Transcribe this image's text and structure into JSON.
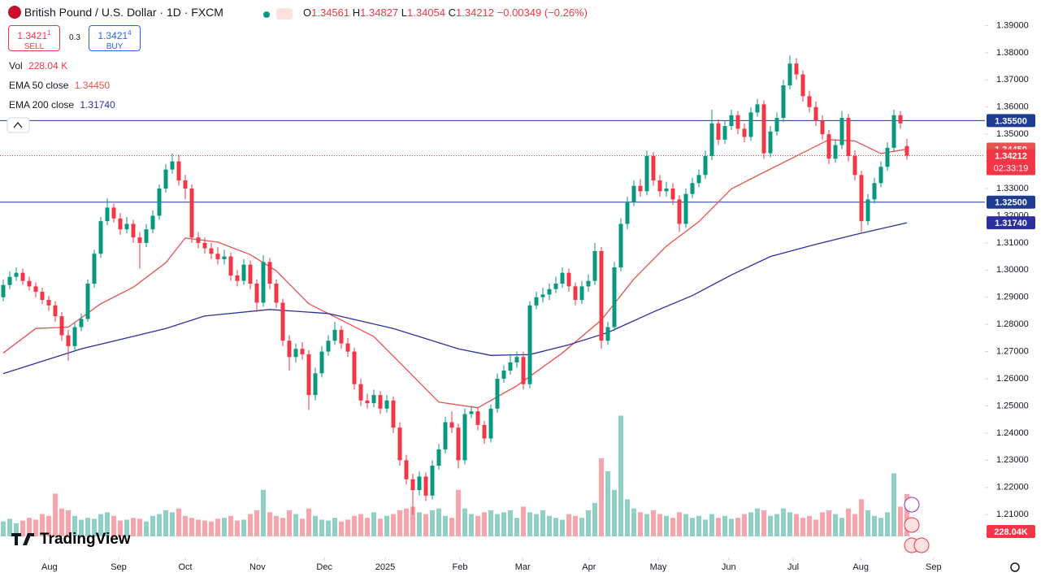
{
  "header": {
    "symbol": "British Pound / U.S. Dollar · 1D · FXCM",
    "ohlc_labels": [
      "O",
      "H",
      "L",
      "C"
    ],
    "change": "−0.00349 (−0.26%)",
    "sell": "1.3421",
    "sell_pip": "1",
    "sell_label": "SELL",
    "spread": "0.3",
    "buy": "1.3421",
    "buy_pip": "4",
    "buy_label": "BUY"
  },
  "legend": {
    "vol": "Vol",
    "vol_value": "228.04 K"
  },
  "chart_data": {
    "type": "candlestick",
    "up_color": "#089981",
    "down_color": "#f23645",
    "candles": [
      [
        1.29,
        1.2965,
        1.2885,
        1.2945
      ],
      [
        1.2945,
        1.2995,
        1.293,
        1.2975
      ],
      [
        1.2975,
        1.301,
        1.296,
        1.299
      ],
      [
        1.299,
        1.3005,
        1.2945,
        1.296
      ],
      [
        1.296,
        1.2975,
        1.2925,
        1.294
      ],
      [
        1.294,
        1.2955,
        1.29,
        1.292
      ],
      [
        1.292,
        1.2935,
        1.2875,
        1.289
      ],
      [
        1.289,
        1.2905,
        1.285,
        1.287
      ],
      [
        1.287,
        1.2885,
        1.281,
        1.283
      ],
      [
        1.283,
        1.2845,
        1.274,
        1.276
      ],
      [
        1.276,
        1.278,
        1.2665,
        1.272
      ],
      [
        1.272,
        1.2805,
        1.27,
        1.279
      ],
      [
        1.279,
        1.284,
        1.2775,
        1.282
      ],
      [
        1.282,
        1.2965,
        1.281,
        1.295
      ],
      [
        1.295,
        1.3075,
        1.2935,
        1.306
      ],
      [
        1.306,
        1.3195,
        1.3045,
        1.318
      ],
      [
        1.318,
        1.3265,
        1.3165,
        1.323
      ],
      [
        1.323,
        1.3245,
        1.3175,
        1.319
      ],
      [
        1.319,
        1.321,
        1.313,
        1.315
      ],
      [
        1.315,
        1.3195,
        1.3135,
        1.317
      ],
      [
        1.317,
        1.3185,
        1.31,
        1.312
      ],
      [
        1.312,
        1.314,
        1.3005,
        1.31
      ],
      [
        1.31,
        1.317,
        1.3085,
        1.315
      ],
      [
        1.315,
        1.322,
        1.3135,
        1.32
      ],
      [
        1.32,
        1.3315,
        1.3185,
        1.33
      ],
      [
        1.33,
        1.339,
        1.3285,
        1.337
      ],
      [
        1.337,
        1.343,
        1.3355,
        1.34
      ],
      [
        1.34,
        1.3425,
        1.331,
        1.333
      ],
      [
        1.333,
        1.335,
        1.326,
        1.33
      ],
      [
        1.33,
        1.3315,
        1.31,
        1.312
      ],
      [
        1.312,
        1.314,
        1.308,
        1.31
      ],
      [
        1.31,
        1.312,
        1.306,
        1.308
      ],
      [
        1.308,
        1.31,
        1.304,
        1.306
      ],
      [
        1.306,
        1.3085,
        1.302,
        1.304
      ],
      [
        1.304,
        1.3075,
        1.302,
        1.305
      ],
      [
        1.305,
        1.3065,
        1.296,
        1.298
      ],
      [
        1.298,
        1.3,
        1.294,
        1.296
      ],
      [
        1.296,
        1.304,
        1.2945,
        1.302
      ],
      [
        1.302,
        1.3035,
        1.293,
        1.295
      ],
      [
        1.295,
        1.2965,
        1.2845,
        1.288
      ],
      [
        1.288,
        1.3055,
        1.2865,
        1.303
      ],
      [
        1.303,
        1.3045,
        1.293,
        1.295
      ],
      [
        1.295,
        1.2965,
        1.286,
        1.288
      ],
      [
        1.288,
        1.2895,
        1.272,
        1.274
      ],
      [
        1.274,
        1.276,
        1.263,
        1.268
      ],
      [
        1.268,
        1.273,
        1.266,
        1.271
      ],
      [
        1.271,
        1.2735,
        1.267,
        1.269
      ],
      [
        1.269,
        1.2705,
        1.2485,
        1.254
      ],
      [
        1.254,
        1.264,
        1.252,
        1.262
      ],
      [
        1.262,
        1.272,
        1.2605,
        1.27
      ],
      [
        1.27,
        1.276,
        1.2685,
        1.274
      ],
      [
        1.274,
        1.281,
        1.2725,
        1.278
      ],
      [
        1.278,
        1.2795,
        1.271,
        1.273
      ],
      [
        1.273,
        1.275,
        1.268,
        1.27
      ],
      [
        1.27,
        1.2715,
        1.256,
        1.258
      ],
      [
        1.258,
        1.26,
        1.25,
        1.252
      ],
      [
        1.252,
        1.2545,
        1.249,
        1.251
      ],
      [
        1.251,
        1.256,
        1.2495,
        1.254
      ],
      [
        1.254,
        1.2555,
        1.247,
        1.249
      ],
      [
        1.249,
        1.254,
        1.2475,
        1.252
      ],
      [
        1.252,
        1.2535,
        1.24,
        1.242
      ],
      [
        1.242,
        1.244,
        1.228,
        1.23
      ],
      [
        1.23,
        1.232,
        1.221,
        1.223
      ],
      [
        1.223,
        1.225,
        1.21,
        1.219
      ],
      [
        1.219,
        1.226,
        1.217,
        1.224
      ],
      [
        1.224,
        1.2255,
        1.215,
        1.217
      ],
      [
        1.217,
        1.23,
        1.2155,
        1.228
      ],
      [
        1.228,
        1.236,
        1.2265,
        1.234
      ],
      [
        1.234,
        1.246,
        1.2325,
        1.244
      ],
      [
        1.244,
        1.248,
        1.24,
        1.242
      ],
      [
        1.242,
        1.2435,
        1.227,
        1.23
      ],
      [
        1.23,
        1.249,
        1.2285,
        1.247
      ],
      [
        1.247,
        1.25,
        1.2455,
        1.248
      ],
      [
        1.248,
        1.2495,
        1.241,
        1.243
      ],
      [
        1.243,
        1.2445,
        1.236,
        1.238
      ],
      [
        1.238,
        1.2505,
        1.2365,
        1.249
      ],
      [
        1.249,
        1.262,
        1.2475,
        1.26
      ],
      [
        1.26,
        1.265,
        1.2585,
        1.263
      ],
      [
        1.263,
        1.269,
        1.2615,
        1.266
      ],
      [
        1.266,
        1.27,
        1.264,
        1.268
      ],
      [
        1.268,
        1.27,
        1.256,
        1.258
      ],
      [
        1.258,
        1.2885,
        1.2565,
        1.287
      ],
      [
        1.287,
        1.292,
        1.2855,
        1.29
      ],
      [
        1.29,
        1.2935,
        1.288,
        1.291
      ],
      [
        1.291,
        1.295,
        1.289,
        1.293
      ],
      [
        1.293,
        1.2975,
        1.2915,
        1.295
      ],
      [
        1.295,
        1.301,
        1.2935,
        1.299
      ],
      [
        1.299,
        1.3005,
        1.292,
        1.294
      ],
      [
        1.294,
        1.2955,
        1.287,
        1.289
      ],
      [
        1.289,
        1.296,
        1.2875,
        1.294
      ],
      [
        1.294,
        1.2985,
        1.292,
        1.296
      ],
      [
        1.296,
        1.31,
        1.2945,
        1.307
      ],
      [
        1.307,
        1.3085,
        1.271,
        1.274
      ],
      [
        1.274,
        1.281,
        1.2725,
        1.279
      ],
      [
        1.279,
        1.303,
        1.2775,
        1.301
      ],
      [
        1.301,
        1.319,
        1.2995,
        1.317
      ],
      [
        1.317,
        1.327,
        1.315,
        1.325
      ],
      [
        1.325,
        1.333,
        1.3235,
        1.331
      ],
      [
        1.331,
        1.3335,
        1.327,
        1.329
      ],
      [
        1.329,
        1.344,
        1.3275,
        1.342
      ],
      [
        1.342,
        1.3435,
        1.331,
        1.333
      ],
      [
        1.333,
        1.335,
        1.327,
        1.329
      ],
      [
        1.329,
        1.3325,
        1.327,
        1.33
      ],
      [
        1.33,
        1.332,
        1.324,
        1.326
      ],
      [
        1.326,
        1.3275,
        1.314,
        1.317
      ],
      [
        1.317,
        1.33,
        1.3155,
        1.328
      ],
      [
        1.328,
        1.334,
        1.3265,
        1.332
      ],
      [
        1.332,
        1.337,
        1.3305,
        1.335
      ],
      [
        1.335,
        1.344,
        1.3335,
        1.342
      ],
      [
        1.342,
        1.359,
        1.3405,
        1.354
      ],
      [
        1.354,
        1.3555,
        1.346,
        1.348
      ],
      [
        1.348,
        1.355,
        1.3465,
        1.353
      ],
      [
        1.353,
        1.359,
        1.3515,
        1.357
      ],
      [
        1.357,
        1.3585,
        1.35,
        1.352
      ],
      [
        1.352,
        1.354,
        1.347,
        1.349
      ],
      [
        1.349,
        1.36,
        1.3475,
        1.358
      ],
      [
        1.358,
        1.363,
        1.3565,
        1.361
      ],
      [
        1.361,
        1.3625,
        1.341,
        1.343
      ],
      [
        1.343,
        1.353,
        1.3415,
        1.351
      ],
      [
        1.351,
        1.358,
        1.3495,
        1.356
      ],
      [
        1.356,
        1.37,
        1.3545,
        1.368
      ],
      [
        1.368,
        1.379,
        1.3665,
        1.376
      ],
      [
        1.376,
        1.378,
        1.37,
        1.372
      ],
      [
        1.372,
        1.3735,
        1.362,
        1.364
      ],
      [
        1.364,
        1.366,
        1.358,
        1.36
      ],
      [
        1.36,
        1.362,
        1.353,
        1.355
      ],
      [
        1.355,
        1.357,
        1.348,
        1.35
      ],
      [
        1.35,
        1.3515,
        1.339,
        1.341
      ],
      [
        1.341,
        1.348,
        1.3395,
        1.346
      ],
      [
        1.346,
        1.3585,
        1.3445,
        1.356
      ],
      [
        1.356,
        1.3575,
        1.34,
        1.342
      ],
      [
        1.342,
        1.344,
        1.333,
        1.335
      ],
      [
        1.335,
        1.3365,
        1.314,
        1.318
      ],
      [
        1.318,
        1.328,
        1.3165,
        1.326
      ],
      [
        1.326,
        1.334,
        1.3245,
        1.332
      ],
      [
        1.332,
        1.34,
        1.3305,
        1.338
      ],
      [
        1.338,
        1.347,
        1.3365,
        1.345
      ],
      [
        1.345,
        1.359,
        1.3435,
        1.357
      ],
      [
        1.357,
        1.3585,
        1.352,
        1.354
      ],
      [
        1.34561,
        1.34827,
        1.34054,
        1.34212
      ]
    ],
    "volume": [
      80,
      95,
      70,
      85,
      100,
      90,
      120,
      110,
      230,
      150,
      140,
      110,
      90,
      100,
      95,
      120,
      130,
      110,
      85,
      90,
      100,
      95,
      80,
      110,
      120,
      140,
      130,
      150,
      110,
      100,
      90,
      85,
      80,
      95,
      100,
      110,
      85,
      90,
      120,
      140,
      250,
      130,
      110,
      100,
      140,
      120,
      95,
      150,
      110,
      90,
      85,
      100,
      80,
      90,
      110,
      120,
      100,
      130,
      95,
      110,
      120,
      140,
      150,
      160,
      130,
      120,
      140,
      150,
      110,
      100,
      250,
      150,
      120,
      110,
      130,
      140,
      120,
      130,
      140,
      100,
      160,
      130,
      120,
      140,
      110,
      100,
      90,
      120,
      110,
      100,
      140,
      180,
      420,
      350,
      250,
      650,
      200,
      150,
      130,
      120,
      140,
      120,
      110,
      100,
      130,
      120,
      100,
      110,
      90,
      120,
      100,
      110,
      95,
      100,
      120,
      130,
      150,
      140,
      110,
      120,
      150,
      130,
      120,
      100,
      110,
      90,
      130,
      140,
      120,
      100,
      150,
      120,
      200,
      140,
      110,
      100,
      130,
      340,
      160,
      228.04
    ],
    "volume_lim": [
      0,
      700
    ],
    "volume_tag": "228.04K",
    "ylim": [
      1.196,
      1.3994
    ],
    "yticks": [
      {
        "value": 1.21,
        "label": "1.21000"
      },
      {
        "value": 1.22,
        "label": "1.22000"
      },
      {
        "value": 1.23,
        "label": "1.23000"
      },
      {
        "value": 1.24,
        "label": "1.24000"
      },
      {
        "value": 1.25,
        "label": "1.25000"
      },
      {
        "value": 1.26,
        "label": "1.26000"
      },
      {
        "value": 1.27,
        "label": "1.27000"
      },
      {
        "value": 1.28,
        "label": "1.28000"
      },
      {
        "value": 1.29,
        "label": "1.29000"
      },
      {
        "value": 1.3,
        "label": "1.30000"
      },
      {
        "value": 1.31,
        "label": "1.31000"
      },
      {
        "value": 1.32,
        "label": "1.32000"
      },
      {
        "value": 1.33,
        "label": "1.33000"
      },
      {
        "value": 1.34,
        "label": "1.34000"
      },
      {
        "value": 1.35,
        "label": "1.35000"
      },
      {
        "value": 1.36,
        "label": "1.36000"
      },
      {
        "value": 1.37,
        "label": "1.37000"
      },
      {
        "value": 1.38,
        "label": "1.38000"
      },
      {
        "value": 1.39,
        "label": "1.39000"
      }
    ],
    "xlim": [
      -0.5,
      151
    ],
    "xticks": [
      {
        "value": 7.1,
        "label": "Aug"
      },
      {
        "value": 17.75,
        "label": "Sep"
      },
      {
        "value": 28,
        "label": "Oct"
      },
      {
        "value": 39.1,
        "label": "Nov"
      },
      {
        "value": 49.4,
        "label": "Dec"
      },
      {
        "value": 58.75,
        "label": "2025"
      },
      {
        "value": 70.25,
        "label": "Feb"
      },
      {
        "value": 79.9,
        "label": "Mar"
      },
      {
        "value": 90.1,
        "label": "Apr"
      },
      {
        "value": 100.75,
        "label": "May"
      },
      {
        "value": 111.6,
        "label": "Jun"
      },
      {
        "value": 121.5,
        "label": "Jul"
      },
      {
        "value": 131.9,
        "label": "Aug"
      },
      {
        "value": 143.1,
        "label": "Sep"
      }
    ],
    "emas": [
      {
        "name": "EMA 50 close",
        "color": "#e5524f",
        "last": {
          "value": 1.3445,
          "label": "1.34450"
        },
        "x": [
          0,
          5,
          10,
          15,
          20,
          25,
          28,
          33,
          38,
          42,
          47,
          52,
          57,
          62,
          67,
          73,
          79,
          86,
          92,
          97,
          102,
          107,
          112,
          117,
          122,
          127,
          131,
          135,
          139
        ],
        "values": [
          1.2695,
          1.2785,
          1.279,
          1.2876,
          1.2937,
          1.3027,
          1.3118,
          1.3103,
          1.3057,
          1.2997,
          1.2876,
          1.2816,
          1.2755,
          1.2635,
          1.2514,
          1.2493,
          1.2574,
          1.2695,
          1.2816,
          1.2967,
          1.3088,
          1.3178,
          1.3299,
          1.336,
          1.342,
          1.348,
          1.3475,
          1.3429,
          1.3445
        ]
      },
      {
        "name": "EMA 200 close",
        "color": "#2e2e9e",
        "last": {
          "value": 1.3174,
          "label": "1.31740"
        },
        "x": [
          0,
          12,
          25,
          31,
          41,
          50,
          60,
          70,
          75,
          81,
          87,
          93,
          100,
          106,
          112,
          118,
          125,
          131,
          139
        ],
        "values": [
          1.2619,
          1.271,
          1.2785,
          1.2831,
          1.2855,
          1.284,
          1.2785,
          1.271,
          1.2686,
          1.2689,
          1.2725,
          1.277,
          1.2846,
          1.2906,
          1.2982,
          1.305,
          1.3095,
          1.313,
          1.3174
        ]
      }
    ],
    "hlines": [
      {
        "value": 1.355,
        "label": "1.35500",
        "color": "#1f3c94"
      },
      {
        "value": 1.325,
        "label": "1.32500",
        "color": "#1f3c94"
      }
    ],
    "countdown": "02:33:19",
    "watermark": "TradingView"
  }
}
